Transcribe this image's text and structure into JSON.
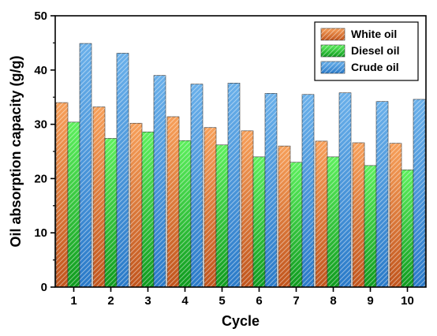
{
  "chart_data": {
    "type": "bar",
    "xlabel": "Cycle",
    "ylabel": "Oil absorption capacity (g/g)",
    "categories": [
      "1",
      "2",
      "3",
      "4",
      "5",
      "6",
      "7",
      "8",
      "9",
      "10"
    ],
    "ylim": [
      0,
      50
    ],
    "yticks": [
      "0",
      "10",
      "20",
      "30",
      "40",
      "50"
    ],
    "legend_position": "top-right",
    "grid": false,
    "series": [
      {
        "name": "White oil",
        "values": [
          34.0,
          33.2,
          30.2,
          31.4,
          29.4,
          28.8,
          26.0,
          26.9,
          26.6,
          26.5
        ],
        "color_top": "#f7a05a",
        "color_bottom": "#c0541c"
      },
      {
        "name": "Diesel oil",
        "values": [
          30.4,
          27.4,
          28.6,
          27.0,
          26.2,
          24.0,
          23.0,
          24.0,
          22.4,
          21.6
        ],
        "color_top": "#5ef05e",
        "color_bottom": "#0e9a1e"
      },
      {
        "name": "Crude oil",
        "values": [
          44.9,
          43.1,
          39.0,
          37.4,
          37.6,
          35.7,
          35.5,
          35.8,
          34.2,
          34.6
        ],
        "color_top": "#6ab0ea",
        "color_bottom": "#2a7ac8"
      }
    ]
  }
}
